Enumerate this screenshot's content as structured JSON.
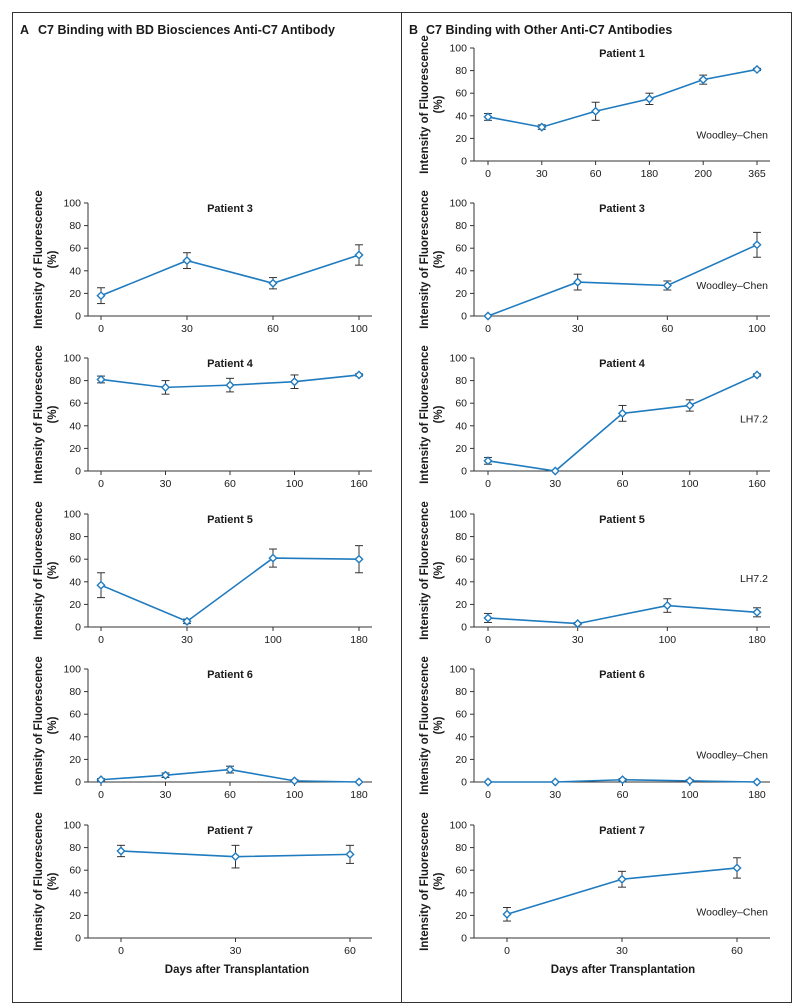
{
  "panels": [
    {
      "letter": "A",
      "title": "C7 Binding with BD Biosciences Anti-C7 Antibody"
    },
    {
      "letter": "B",
      "title": "C7 Binding with Other Anti-C7 Antibodies"
    }
  ],
  "common": {
    "ylabel_line1": "Intensity of Fluorescence",
    "ylabel_line2": "(%)",
    "xlabel": "Days after Transplantation"
  },
  "colors": {
    "line": "#1f7bbf",
    "marker_fill": "#ffffff",
    "error": "#333333",
    "border": "#333333"
  },
  "chart_data": [
    {
      "type": "line",
      "panel": "A",
      "title": "Patient 3",
      "categories": [
        "0",
        "30",
        "60",
        "100"
      ],
      "values": [
        18,
        49,
        29,
        54
      ],
      "errors": [
        7,
        7,
        5,
        9
      ],
      "ylim": [
        0,
        100
      ],
      "yticks": [
        0,
        20,
        40,
        60,
        80,
        100
      ],
      "annotation": ""
    },
    {
      "type": "line",
      "panel": "A",
      "title": "Patient 4",
      "categories": [
        "0",
        "30",
        "60",
        "100",
        "160"
      ],
      "values": [
        81,
        74,
        76,
        79,
        85
      ],
      "errors": [
        3,
        6,
        6,
        6,
        1
      ],
      "ylim": [
        0,
        100
      ],
      "yticks": [
        0,
        20,
        40,
        60,
        80,
        100
      ],
      "annotation": ""
    },
    {
      "type": "line",
      "panel": "A",
      "title": "Patient 5",
      "categories": [
        "0",
        "30",
        "100",
        "180"
      ],
      "values": [
        37,
        5,
        61,
        60
      ],
      "errors": [
        11,
        2,
        8,
        12
      ],
      "ylim": [
        0,
        100
      ],
      "yticks": [
        0,
        20,
        40,
        60,
        80,
        100
      ],
      "annotation": ""
    },
    {
      "type": "line",
      "panel": "A",
      "title": "Patient 6",
      "categories": [
        "0",
        "30",
        "60",
        "100",
        "180"
      ],
      "values": [
        2,
        6,
        11,
        1,
        0
      ],
      "errors": [
        1,
        2,
        3,
        1,
        0
      ],
      "ylim": [
        0,
        100
      ],
      "yticks": [
        0,
        20,
        40,
        60,
        80,
        100
      ],
      "annotation": ""
    },
    {
      "type": "line",
      "panel": "A",
      "title": "Patient 7",
      "categories": [
        "0",
        "30",
        "60"
      ],
      "values": [
        77,
        72,
        74
      ],
      "errors": [
        5,
        10,
        8
      ],
      "ylim": [
        0,
        100
      ],
      "yticks": [
        0,
        20,
        40,
        60,
        80,
        100
      ],
      "annotation": ""
    },
    {
      "type": "line",
      "panel": "B",
      "title": "Patient 1",
      "categories": [
        "0",
        "30",
        "60",
        "180",
        "200",
        "365"
      ],
      "values": [
        39,
        30,
        44,
        55,
        72,
        81
      ],
      "errors": [
        3,
        2,
        8,
        5,
        4,
        1
      ],
      "ylim": [
        0,
        100
      ],
      "yticks": [
        0,
        20,
        40,
        60,
        80,
        100
      ],
      "annotation": "Woodley–Chen"
    },
    {
      "type": "line",
      "panel": "B",
      "title": "Patient 3",
      "categories": [
        "0",
        "30",
        "60",
        "100"
      ],
      "values": [
        0,
        30,
        27,
        63
      ],
      "errors": [
        0,
        7,
        4,
        11
      ],
      "ylim": [
        0,
        100
      ],
      "yticks": [
        0,
        20,
        40,
        60,
        80,
        100
      ],
      "annotation": "Woodley–Chen"
    },
    {
      "type": "line",
      "panel": "B",
      "title": "Patient 4",
      "categories": [
        "0",
        "30",
        "60",
        "100",
        "160"
      ],
      "values": [
        9,
        0,
        51,
        58,
        85
      ],
      "errors": [
        3,
        0,
        7,
        5,
        1
      ],
      "ylim": [
        0,
        100
      ],
      "yticks": [
        0,
        20,
        40,
        60,
        80,
        100
      ],
      "annotation": "LH7.2"
    },
    {
      "type": "line",
      "panel": "B",
      "title": "Patient 5",
      "categories": [
        "0",
        "30",
        "100",
        "180"
      ],
      "values": [
        8,
        3,
        19,
        13
      ],
      "errors": [
        4,
        1,
        6,
        4
      ],
      "ylim": [
        0,
        100
      ],
      "yticks": [
        0,
        20,
        40,
        60,
        80,
        100
      ],
      "annotation": "LH7.2"
    },
    {
      "type": "line",
      "panel": "B",
      "title": "Patient 6",
      "categories": [
        "0",
        "30",
        "60",
        "100",
        "180"
      ],
      "values": [
        0,
        0,
        2,
        1,
        0
      ],
      "errors": [
        0,
        0,
        1,
        1,
        0
      ],
      "ylim": [
        0,
        100
      ],
      "yticks": [
        0,
        20,
        40,
        60,
        80,
        100
      ],
      "annotation": "Woodley–Chen"
    },
    {
      "type": "line",
      "panel": "B",
      "title": "Patient 7",
      "categories": [
        "0",
        "30",
        "60"
      ],
      "values": [
        21,
        52,
        62
      ],
      "errors": [
        6,
        7,
        9
      ],
      "ylim": [
        0,
        100
      ],
      "yticks": [
        0,
        20,
        40,
        60,
        80,
        100
      ],
      "annotation": "Woodley–Chen"
    }
  ]
}
